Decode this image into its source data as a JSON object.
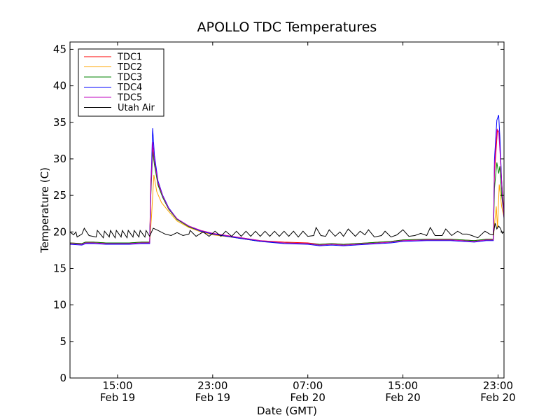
{
  "chart_data": {
    "type": "line",
    "title": "APOLLO TDC Temperatures",
    "xlabel": "Date (GMT)",
    "ylabel": "Temperature (C)",
    "x_unit": "hours since Feb 19 11:00 GMT",
    "xlim": [
      0,
      36.5
    ],
    "ylim": [
      0,
      46
    ],
    "yticks": [
      0,
      5,
      10,
      15,
      20,
      25,
      30,
      35,
      40,
      45
    ],
    "xticks": [
      {
        "x": 4,
        "line1": "15:00",
        "line2": "Feb 19"
      },
      {
        "x": 12,
        "line1": "23:00",
        "line2": "Feb 19"
      },
      {
        "x": 20,
        "line1": "07:00",
        "line2": "Feb 20"
      },
      {
        "x": 28,
        "line1": "15:00",
        "line2": "Feb 20"
      },
      {
        "x": 36,
        "line1": "23:00",
        "line2": "Feb 20"
      }
    ],
    "grid": false,
    "legend_position": "top-left",
    "series": [
      {
        "name": "TDC1",
        "color": "#ff0000",
        "points": [
          [
            0,
            18.5
          ],
          [
            1,
            18.4
          ],
          [
            1.3,
            18.6
          ],
          [
            2,
            18.6
          ],
          [
            3,
            18.5
          ],
          [
            4,
            18.5
          ],
          [
            5,
            18.5
          ],
          [
            6,
            18.6
          ],
          [
            6.7,
            18.6
          ],
          [
            6.8,
            27
          ],
          [
            6.95,
            31.5
          ],
          [
            7.1,
            29.5
          ],
          [
            7.4,
            26.6
          ],
          [
            7.8,
            24.8
          ],
          [
            8.3,
            23.2
          ],
          [
            9,
            21.8
          ],
          [
            10,
            20.8
          ],
          [
            11,
            20.2
          ],
          [
            12,
            19.8
          ],
          [
            14,
            19.3
          ],
          [
            16,
            18.8
          ],
          [
            18,
            18.6
          ],
          [
            20,
            18.5
          ],
          [
            21,
            18.3
          ],
          [
            22,
            18.4
          ],
          [
            23,
            18.3
          ],
          [
            25,
            18.5
          ],
          [
            26,
            18.6
          ],
          [
            27,
            18.7
          ],
          [
            28,
            18.9
          ],
          [
            30,
            19
          ],
          [
            32,
            19
          ],
          [
            34,
            18.8
          ],
          [
            35,
            19
          ],
          [
            35.6,
            19
          ],
          [
            35.7,
            28
          ],
          [
            35.95,
            34
          ],
          [
            36.1,
            33.5
          ],
          [
            36.3,
            27
          ],
          [
            36.5,
            22.5
          ],
          [
            36.5,
            22
          ]
        ]
      },
      {
        "name": "TDC2",
        "color": "#ffa500",
        "points": [
          [
            0,
            18.4
          ],
          [
            1,
            18.3
          ],
          [
            1.3,
            18.5
          ],
          [
            2,
            18.5
          ],
          [
            3,
            18.4
          ],
          [
            4,
            18.4
          ],
          [
            5,
            18.4
          ],
          [
            6,
            18.5
          ],
          [
            6.7,
            18.5
          ],
          [
            6.85,
            22
          ],
          [
            7.05,
            27.8
          ],
          [
            7.3,
            25.5
          ],
          [
            7.7,
            24
          ],
          [
            8.3,
            22.8
          ],
          [
            9,
            21.5
          ],
          [
            10,
            20.6
          ],
          [
            11,
            20
          ],
          [
            12,
            19.6
          ],
          [
            14,
            19.2
          ],
          [
            16,
            18.7
          ],
          [
            18,
            18.5
          ],
          [
            20,
            18.4
          ],
          [
            21,
            18.2
          ],
          [
            22,
            18.3
          ],
          [
            23,
            18.2
          ],
          [
            25,
            18.4
          ],
          [
            26,
            18.5
          ],
          [
            27,
            18.6
          ],
          [
            28,
            18.8
          ],
          [
            30,
            18.9
          ],
          [
            32,
            18.9
          ],
          [
            34,
            18.7
          ],
          [
            35,
            18.9
          ],
          [
            35.6,
            18.9
          ],
          [
            35.7,
            21
          ],
          [
            35.85,
            23.5
          ],
          [
            35.95,
            20.5
          ],
          [
            36.1,
            26.5
          ],
          [
            36.3,
            23.5
          ],
          [
            36.5,
            22
          ]
        ]
      },
      {
        "name": "TDC3",
        "color": "#008000",
        "points": [
          [
            0,
            18.5
          ],
          [
            1,
            18.4
          ],
          [
            1.3,
            18.6
          ],
          [
            2,
            18.6
          ],
          [
            3,
            18.5
          ],
          [
            4,
            18.5
          ],
          [
            5,
            18.5
          ],
          [
            6,
            18.6
          ],
          [
            6.7,
            18.6
          ],
          [
            6.8,
            25
          ],
          [
            6.95,
            31
          ],
          [
            7.1,
            29.2
          ],
          [
            7.4,
            26.4
          ],
          [
            7.8,
            24.7
          ],
          [
            8.3,
            23.1
          ],
          [
            9,
            21.7
          ],
          [
            10,
            20.7
          ],
          [
            11,
            20.1
          ],
          [
            12,
            19.7
          ],
          [
            14,
            19.2
          ],
          [
            16,
            18.7
          ],
          [
            18,
            18.5
          ],
          [
            20,
            18.4
          ],
          [
            21,
            18.3
          ],
          [
            22,
            18.4
          ],
          [
            23,
            18.3
          ],
          [
            25,
            18.5
          ],
          [
            26,
            18.6
          ],
          [
            27,
            18.7
          ],
          [
            28,
            18.9
          ],
          [
            30,
            19
          ],
          [
            32,
            19
          ],
          [
            34,
            18.8
          ],
          [
            35,
            19
          ],
          [
            35.6,
            19
          ],
          [
            35.7,
            26
          ],
          [
            35.9,
            29.5
          ],
          [
            36.05,
            28
          ],
          [
            36.15,
            29
          ],
          [
            36.3,
            25
          ],
          [
            36.5,
            22.2
          ]
        ]
      },
      {
        "name": "TDC4",
        "color": "#0000ff",
        "points": [
          [
            0,
            18.3
          ],
          [
            1,
            18.2
          ],
          [
            1.3,
            18.4
          ],
          [
            2,
            18.4
          ],
          [
            3,
            18.3
          ],
          [
            4,
            18.3
          ],
          [
            5,
            18.3
          ],
          [
            6,
            18.4
          ],
          [
            6.7,
            18.4
          ],
          [
            6.8,
            26
          ],
          [
            6.95,
            34.2
          ],
          [
            7.1,
            30.5
          ],
          [
            7.4,
            27
          ],
          [
            7.8,
            25
          ],
          [
            8.3,
            23.3
          ],
          [
            9,
            21.8
          ],
          [
            10,
            20.8
          ],
          [
            11,
            20.1
          ],
          [
            12,
            19.7
          ],
          [
            14,
            19.2
          ],
          [
            16,
            18.7
          ],
          [
            18,
            18.4
          ],
          [
            20,
            18.3
          ],
          [
            21,
            18.1
          ],
          [
            22,
            18.2
          ],
          [
            23,
            18.1
          ],
          [
            25,
            18.3
          ],
          [
            26,
            18.4
          ],
          [
            27,
            18.5
          ],
          [
            28,
            18.7
          ],
          [
            30,
            18.8
          ],
          [
            32,
            18.8
          ],
          [
            34,
            18.6
          ],
          [
            35,
            18.8
          ],
          [
            35.6,
            18.8
          ],
          [
            35.7,
            30
          ],
          [
            35.9,
            35.3
          ],
          [
            36.05,
            36
          ],
          [
            36.15,
            33
          ],
          [
            36.3,
            27
          ],
          [
            36.5,
            21.8
          ]
        ]
      },
      {
        "name": "TDC5",
        "color": "#bf00bf",
        "points": [
          [
            0,
            18.4
          ],
          [
            1,
            18.3
          ],
          [
            1.3,
            18.5
          ],
          [
            2,
            18.5
          ],
          [
            3,
            18.4
          ],
          [
            4,
            18.4
          ],
          [
            5,
            18.4
          ],
          [
            6,
            18.5
          ],
          [
            6.7,
            18.5
          ],
          [
            6.8,
            25.5
          ],
          [
            6.95,
            32.3
          ],
          [
            7.1,
            29.8
          ],
          [
            7.4,
            26.8
          ],
          [
            7.8,
            24.9
          ],
          [
            8.3,
            23.2
          ],
          [
            9,
            21.8
          ],
          [
            10,
            20.8
          ],
          [
            11,
            20.2
          ],
          [
            12,
            19.8
          ],
          [
            14,
            19.3
          ],
          [
            16,
            18.8
          ],
          [
            18,
            18.5
          ],
          [
            20,
            18.4
          ],
          [
            21,
            18.2
          ],
          [
            22,
            18.3
          ],
          [
            23,
            18.2
          ],
          [
            25,
            18.4
          ],
          [
            26,
            18.5
          ],
          [
            27,
            18.6
          ],
          [
            28,
            18.8
          ],
          [
            30,
            18.9
          ],
          [
            32,
            18.9
          ],
          [
            34,
            18.7
          ],
          [
            35,
            18.9
          ],
          [
            35.6,
            18.9
          ],
          [
            35.7,
            29
          ],
          [
            35.9,
            34
          ],
          [
            36.05,
            33.8
          ],
          [
            36.2,
            30
          ],
          [
            36.35,
            25
          ],
          [
            36.5,
            22
          ]
        ]
      },
      {
        "name": "Utah Air",
        "color": "#000000",
        "points": [
          [
            0,
            20
          ],
          [
            0.3,
            19.6
          ],
          [
            0.5,
            20
          ],
          [
            0.6,
            19.3
          ],
          [
            1,
            19.7
          ],
          [
            1.2,
            20.5
          ],
          [
            1.6,
            19.5
          ],
          [
            2.2,
            19.3
          ],
          [
            2.3,
            20.2
          ],
          [
            2.8,
            19.2
          ],
          [
            2.9,
            20.1
          ],
          [
            3.3,
            19.3
          ],
          [
            3.4,
            20.2
          ],
          [
            3.8,
            19.2
          ],
          [
            3.9,
            20.2
          ],
          [
            4.3,
            19.3
          ],
          [
            4.4,
            20.2
          ],
          [
            4.8,
            19.2
          ],
          [
            4.9,
            20.2
          ],
          [
            5.3,
            19.3
          ],
          [
            5.4,
            20.2
          ],
          [
            5.8,
            19.3
          ],
          [
            5.9,
            20.2
          ],
          [
            6.3,
            19.3
          ],
          [
            6.4,
            20.2
          ],
          [
            6.7,
            19.4
          ],
          [
            7,
            20.5
          ],
          [
            7.4,
            20.2
          ],
          [
            8,
            19.7
          ],
          [
            8.5,
            19.5
          ],
          [
            9,
            19.9
          ],
          [
            9.5,
            19.5
          ],
          [
            10,
            19.7
          ],
          [
            10.1,
            20.2
          ],
          [
            10.6,
            19.4
          ],
          [
            11.2,
            20
          ],
          [
            11.7,
            19.4
          ],
          [
            12.2,
            20.1
          ],
          [
            12.7,
            19.4
          ],
          [
            13.1,
            20.1
          ],
          [
            13.6,
            19.4
          ],
          [
            14,
            20.1
          ],
          [
            14.4,
            19.4
          ],
          [
            14.8,
            20.1
          ],
          [
            15.2,
            19.4
          ],
          [
            15.6,
            20.1
          ],
          [
            16,
            19.4
          ],
          [
            16.4,
            20.1
          ],
          [
            16.8,
            19.4
          ],
          [
            17.2,
            20.1
          ],
          [
            17.6,
            19.4
          ],
          [
            18,
            20.1
          ],
          [
            18.4,
            19.4
          ],
          [
            18.8,
            20.1
          ],
          [
            19.2,
            19.3
          ],
          [
            19.6,
            20.1
          ],
          [
            20,
            19.4
          ],
          [
            20.5,
            19.5
          ],
          [
            20.7,
            20.6
          ],
          [
            21.1,
            19.5
          ],
          [
            21.5,
            19.4
          ],
          [
            21.8,
            20.3
          ],
          [
            22.3,
            19.4
          ],
          [
            22.7,
            20
          ],
          [
            23,
            19.4
          ],
          [
            23.4,
            20.4
          ],
          [
            24,
            19.4
          ],
          [
            24.4,
            20.1
          ],
          [
            24.8,
            19.6
          ],
          [
            25.1,
            20.3
          ],
          [
            25.6,
            19.3
          ],
          [
            26.2,
            19.5
          ],
          [
            26.5,
            20.1
          ],
          [
            27,
            19.3
          ],
          [
            27.5,
            19.6
          ],
          [
            28,
            20.3
          ],
          [
            28.5,
            19.4
          ],
          [
            29,
            19.5
          ],
          [
            29.5,
            19.8
          ],
          [
            30,
            19.5
          ],
          [
            30.3,
            20.6
          ],
          [
            30.7,
            19.5
          ],
          [
            31.3,
            19.5
          ],
          [
            31.6,
            20.4
          ],
          [
            32.1,
            19.5
          ],
          [
            32.6,
            20.1
          ],
          [
            33,
            19.7
          ],
          [
            33.4,
            19.7
          ],
          [
            33.8,
            19.5
          ],
          [
            34.3,
            19.2
          ],
          [
            34.9,
            20.1
          ],
          [
            35.3,
            19.7
          ],
          [
            35.6,
            19.6
          ],
          [
            35.75,
            21.2
          ],
          [
            35.9,
            20.4
          ],
          [
            36.05,
            20.8
          ],
          [
            36.2,
            20.5
          ],
          [
            36.35,
            19.8
          ],
          [
            36.5,
            20
          ]
        ]
      }
    ]
  }
}
